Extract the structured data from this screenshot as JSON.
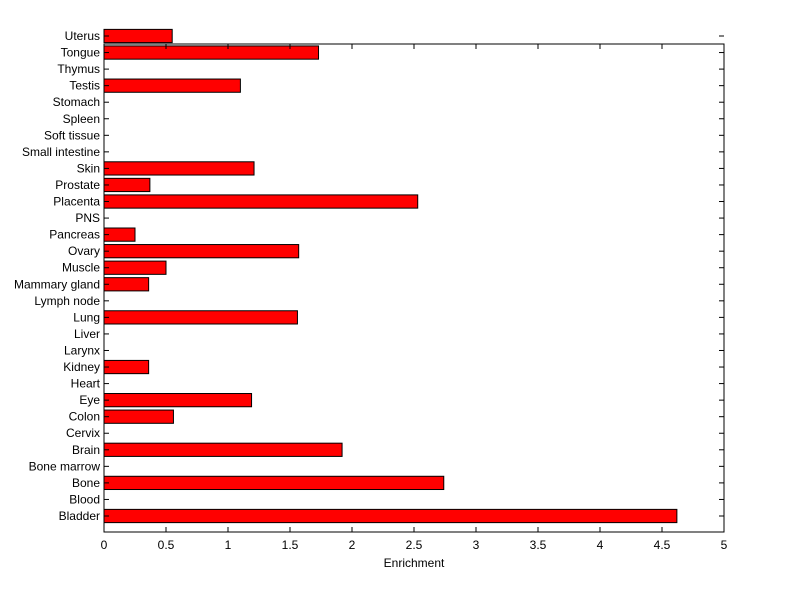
{
  "chart_data": {
    "type": "bar",
    "orientation": "horizontal",
    "title": "",
    "xlabel": "Enrichment",
    "ylabel": "",
    "xlim": [
      0,
      5
    ],
    "xticks": [
      "0",
      "0.5",
      "1",
      "1.5",
      "2",
      "2.5",
      "3",
      "3.5",
      "4",
      "4.5",
      "5"
    ],
    "grid": false,
    "bar_color": "#ff0000",
    "categories": [
      "Bladder",
      "Blood",
      "Bone",
      "Bone marrow",
      "Brain",
      "Cervix",
      "Colon",
      "Eye",
      "Heart",
      "Kidney",
      "Larynx",
      "Liver",
      "Lung",
      "Lymph node",
      "Mammary gland",
      "Muscle",
      "Ovary",
      "Pancreas",
      "PNS",
      "Placenta",
      "Prostate",
      "Skin",
      "Small intestine",
      "Soft tissue",
      "Spleen",
      "Stomach",
      "Testis",
      "Thymus",
      "Tongue",
      "Uterus"
    ],
    "values": [
      4.62,
      0,
      2.74,
      0,
      1.92,
      0,
      0.56,
      1.19,
      0,
      0.36,
      0,
      0,
      1.56,
      0,
      0.36,
      0.5,
      1.57,
      0.25,
      0,
      2.53,
      0.37,
      1.21,
      0,
      0,
      0,
      0,
      1.1,
      0,
      1.73,
      0.55
    ]
  }
}
